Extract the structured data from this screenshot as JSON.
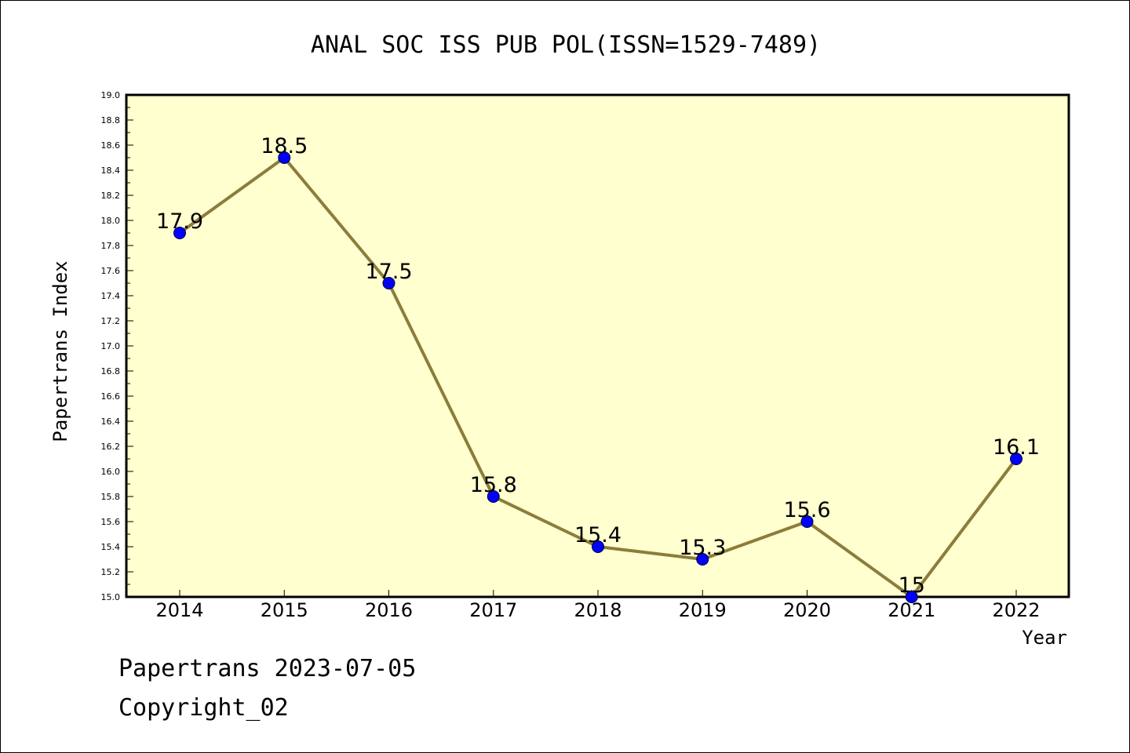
{
  "chart_data": {
    "type": "line",
    "title": "ANAL SOC ISS PUB POL(ISSN=1529-7489)",
    "xlabel": "Year",
    "ylabel": "Papertrans Index",
    "categories": [
      "2014",
      "2015",
      "2016",
      "2017",
      "2018",
      "2019",
      "2020",
      "2021",
      "2022"
    ],
    "values": [
      17.9,
      18.5,
      17.5,
      15.8,
      15.4,
      15.3,
      15.6,
      15,
      16.1
    ],
    "data_labels": [
      "17.9",
      "18.5",
      "17.5",
      "15.8",
      "15.4",
      "15.3",
      "15.6",
      "15",
      "16.1"
    ],
    "ylim": [
      15.0,
      19.0
    ],
    "yticks": [
      "15.0",
      "15.2",
      "15.4",
      "15.6",
      "15.8",
      "16.0",
      "16.2",
      "16.4",
      "16.6",
      "16.8",
      "17.0",
      "17.2",
      "17.4",
      "17.6",
      "17.8",
      "18.0",
      "18.2",
      "18.4",
      "18.6",
      "18.8",
      "19.0"
    ],
    "grid": false,
    "colors": {
      "plot_background": "#ffffd0",
      "line": "#8b7d3a",
      "marker": "#0000ff"
    }
  },
  "footer": {
    "line1": "Papertrans 2023-07-05",
    "line2": "Copyright_02"
  }
}
